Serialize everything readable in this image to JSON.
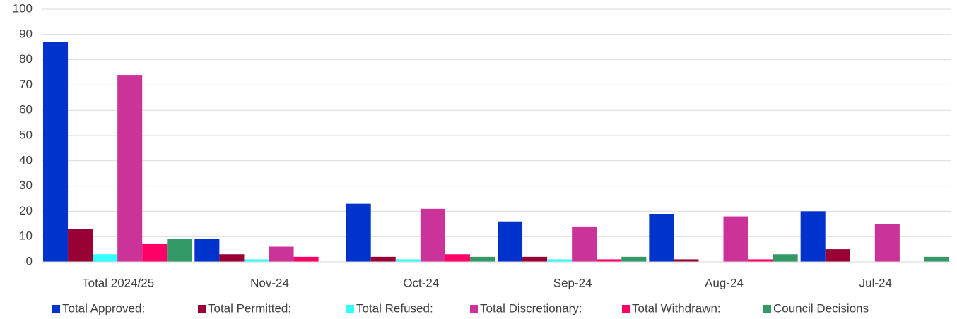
{
  "chart_data": {
    "type": "bar",
    "categories": [
      "Total 2024/25",
      "Nov-24",
      "Oct-24",
      "Sep-24",
      "Aug-24",
      "Jul-24"
    ],
    "series": [
      {
        "name": "Total Approved:",
        "color": "#0033cc",
        "values": [
          87,
          9,
          23,
          16,
          19,
          20
        ]
      },
      {
        "name": "Total Permitted:",
        "color": "#990033",
        "values": [
          13,
          3,
          2,
          2,
          1,
          5
        ]
      },
      {
        "name": "Total Refused:",
        "color": "#33ffff",
        "values": [
          3,
          1,
          1,
          1,
          0,
          0
        ]
      },
      {
        "name": "Total Discretionary:",
        "color": "#cc3399",
        "values": [
          74,
          6,
          21,
          14,
          18,
          15
        ]
      },
      {
        "name": "Total Withdrawn:",
        "color": "#ff0066",
        "values": [
          7,
          2,
          3,
          1,
          1,
          0
        ]
      },
      {
        "name": "Council Decisions",
        "color": "#339966",
        "values": [
          9,
          0,
          2,
          2,
          3,
          2
        ]
      }
    ],
    "ylim": [
      0,
      100
    ],
    "yticks": [
      0,
      10,
      20,
      30,
      40,
      50,
      60,
      70,
      80,
      90,
      100
    ],
    "grid": true,
    "legend": "bottom"
  }
}
